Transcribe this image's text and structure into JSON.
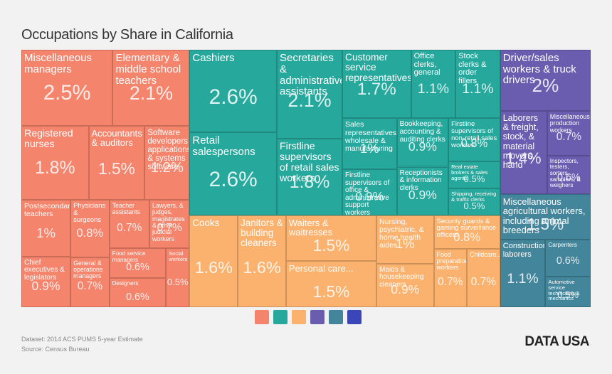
{
  "chart_data": {
    "type": "treemap",
    "title": "Occupations by Share in California",
    "series": [
      {
        "color": "#f4846c",
        "categories": [
          "Miscellaneous managers",
          "Elementary & middle school teachers",
          "Registered nurses",
          "Accountants & auditors",
          "Software developers, applications & systems software",
          "Postsecondary teachers",
          "Chief executives & legislators",
          "Physicians & surgeons",
          "General & operations managers",
          "Teacher assistants",
          "Lawyers, & judges, magistrates & other judicial workers",
          "Food service managers",
          "Designers",
          "Social workers"
        ],
        "values": [
          2.5,
          2.1,
          1.8,
          1.5,
          1.2,
          1,
          0.9,
          0.8,
          0.7,
          0.7,
          0.7,
          0.6,
          0.6,
          0.5
        ],
        "value_labels": [
          "2.5%",
          "2.1%",
          "1.8%",
          "1.5%",
          "1.2%",
          "1%",
          "0.9%",
          "0.8%",
          "0.7%",
          "0.7%",
          "0.7%",
          "0.6%",
          "0.6%",
          "0.5%"
        ]
      },
      {
        "color": "#27a89d",
        "categories": [
          "Cashiers",
          "Retail salespersons",
          "Secretaries & administrative assistants",
          "Firstline supervisors of retail sales workers",
          "Customer service representatives",
          "Office clerks, general",
          "Stock clerks & order fillers",
          "Sales representatives, wholesale & manufacturing",
          "Firstline supervisors of office & administrative support workers",
          "Bookkeeping, accounting & auditing clerks",
          "Receptionists & information clerks",
          "Firstline supervisors of non-retail sales workers",
          "Real estate brokers & sales agents",
          "Shipping, receiving & traffic clerks"
        ],
        "values": [
          2.6,
          2.6,
          2.1,
          1.8,
          1.7,
          1.1,
          1.1,
          1,
          0.9,
          0.9,
          0.9,
          0.8,
          0.5,
          0.5
        ],
        "value_labels": [
          "2.6%",
          "2.6%",
          "2.1%",
          "1.8%",
          "1.7%",
          "1.1%",
          "1.1%",
          "1%",
          "0.9%",
          "0.9%",
          "0.9%",
          "0.8%",
          "0.5%",
          "0.5%"
        ]
      },
      {
        "color": "#fbb26e",
        "categories": [
          "Cooks",
          "Janitors & building cleaners",
          "Waiters & waitresses",
          "Personal care...",
          "Nursing, psychiatric, & home health aides",
          "Maids & housekeeping cleaners",
          "Security guards & gaming surveillance officers",
          "Food preparation workers",
          "Childcare..."
        ],
        "values": [
          1.6,
          1.6,
          1.5,
          1.5,
          1,
          0.9,
          0.8,
          0.7,
          0.7
        ],
        "value_labels": [
          "1.6%",
          "1.6%",
          "1.5%",
          "1.5%",
          "1%",
          "0.9%",
          "0.8%",
          "0.7%",
          "0.7%"
        ]
      },
      {
        "color": "#6a5db0",
        "categories": [
          "Driver/sales workers & truck drivers",
          "Laborers & freight, stock, & material movers, hand",
          "Miscellaneous production workers",
          "Inspectors, testers, sorters, samplers, & weighers"
        ],
        "values": [
          2,
          1.4,
          0.7,
          0.6
        ],
        "value_labels": [
          "2%",
          "1.4%",
          "0.7%",
          "0.6%"
        ]
      },
      {
        "color": "#43859a",
        "categories": [
          "Miscellaneous agricultural workers, including animal breeders",
          "Construction laborers",
          "Carpenters",
          "Automotive service technicians & mechanics"
        ],
        "values": [
          1.5,
          1.1,
          0.6,
          0.5
        ],
        "value_labels": [
          "1.5%",
          "1.1%",
          "0.6%",
          "0.5%"
        ]
      }
    ],
    "footer": [
      "Dataset: 2014 ACS PUMS 5-year Estimate",
      "Source: Census Bureau"
    ],
    "logo": "DATA USA"
  }
}
